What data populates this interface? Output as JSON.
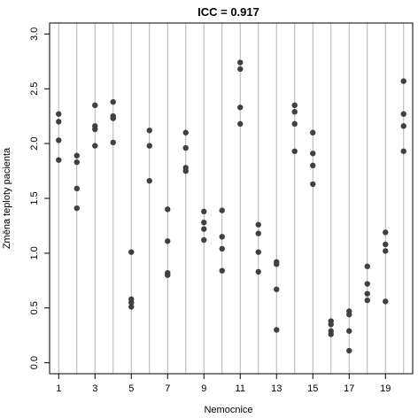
{
  "chart_data": {
    "type": "scatter",
    "title": "ICC = 0.917",
    "xlabel": "Nemocnice",
    "ylabel": "Změna teploty pacienta",
    "xlim": [
      0.5,
      20.5
    ],
    "ylim": [
      -0.1,
      3.1
    ],
    "x_ticks": [
      1,
      3,
      5,
      7,
      9,
      11,
      13,
      15,
      17,
      19
    ],
    "y_ticks": [
      0.0,
      0.5,
      1.0,
      1.5,
      2.0,
      2.5,
      3.0
    ],
    "y_tick_labels": [
      "0.0",
      "0.5",
      "1.0",
      "1.5",
      "2.0",
      "2.5",
      "3.0"
    ],
    "vertical_grid": [
      1,
      2,
      3,
      4,
      5,
      6,
      7,
      8,
      9,
      10,
      11,
      12,
      13,
      14,
      15,
      16,
      17,
      18,
      19,
      20
    ],
    "point_color": "#404040",
    "grid_color": "#b3b3b3",
    "points": [
      {
        "x": 1,
        "y": [
          2.27,
          2.2,
          2.03,
          1.85
        ]
      },
      {
        "x": 2,
        "y": [
          1.89,
          1.83,
          1.59,
          1.41
        ]
      },
      {
        "x": 3,
        "y": [
          2.35,
          2.16,
          2.13,
          1.98
        ]
      },
      {
        "x": 4,
        "y": [
          2.38,
          2.25,
          2.23,
          2.01
        ]
      },
      {
        "x": 5,
        "y": [
          1.01,
          0.58,
          0.55,
          0.51
        ]
      },
      {
        "x": 6,
        "y": [
          2.12,
          1.98,
          1.66
        ]
      },
      {
        "x": 7,
        "y": [
          1.4,
          1.11,
          0.82,
          0.8
        ]
      },
      {
        "x": 8,
        "y": [
          2.1,
          1.96,
          1.78,
          1.75
        ]
      },
      {
        "x": 9,
        "y": [
          1.38,
          1.28,
          1.22,
          1.12
        ]
      },
      {
        "x": 10,
        "y": [
          1.39,
          1.15,
          1.04,
          0.84
        ]
      },
      {
        "x": 11,
        "y": [
          2.74,
          2.68,
          2.33,
          2.18
        ]
      },
      {
        "x": 12,
        "y": [
          1.26,
          1.18,
          1.01,
          0.83
        ]
      },
      {
        "x": 13,
        "y": [
          0.92,
          0.9,
          0.67,
          0.3
        ]
      },
      {
        "x": 14,
        "y": [
          2.35,
          2.29,
          2.18,
          1.93
        ]
      },
      {
        "x": 15,
        "y": [
          2.1,
          1.91,
          1.8,
          1.63
        ]
      },
      {
        "x": 16,
        "y": [
          0.38,
          0.35,
          0.29,
          0.26
        ]
      },
      {
        "x": 17,
        "y": [
          0.47,
          0.44,
          0.29,
          0.11
        ]
      },
      {
        "x": 18,
        "y": [
          0.88,
          0.72,
          0.63,
          0.57
        ]
      },
      {
        "x": 19,
        "y": [
          1.19,
          1.08,
          1.02,
          0.56
        ]
      },
      {
        "x": 20,
        "y": [
          2.57,
          2.27,
          2.16,
          1.93
        ]
      }
    ]
  }
}
